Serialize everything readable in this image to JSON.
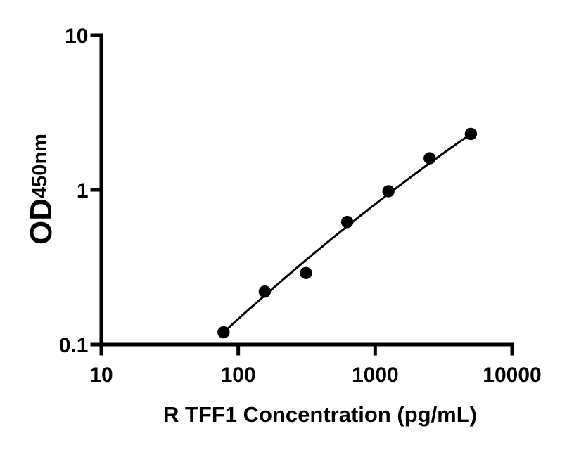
{
  "figure": {
    "background": "#ffffff",
    "xlabel": "R TFF1 Concentration (pg/mL)",
    "ylabel_main": "OD",
    "ylabel_sub": "450nm"
  },
  "chart_data": {
    "type": "scatter",
    "title": "",
    "xlabel": "R TFF1 Concentration (pg/mL)",
    "ylabel": "OD450nm",
    "x_scale": "log",
    "y_scale": "log",
    "xlim": [
      10,
      10000
    ],
    "ylim": [
      0.1,
      10
    ],
    "grid": false,
    "legend_position": "none",
    "axis_color": "#000000",
    "marker_color": "#000000",
    "line_color": "#000000",
    "x_ticks": [
      {
        "value": 10,
        "label": "10"
      },
      {
        "value": 100,
        "label": "100"
      },
      {
        "value": 1000,
        "label": "1000"
      },
      {
        "value": 10000,
        "label": "10000"
      }
    ],
    "y_ticks": [
      {
        "value": 0.1,
        "label": "0.1"
      },
      {
        "value": 1,
        "label": "1"
      },
      {
        "value": 10,
        "label": "10"
      }
    ],
    "points": [
      {
        "x": 78.1,
        "y": 0.12
      },
      {
        "x": 156.3,
        "y": 0.22
      },
      {
        "x": 312.5,
        "y": 0.29
      },
      {
        "x": 625,
        "y": 0.62
      },
      {
        "x": 1250,
        "y": 0.98
      },
      {
        "x": 2500,
        "y": 1.6
      },
      {
        "x": 5000,
        "y": 2.3
      }
    ],
    "fit_curve": {
      "type": "quadratic_loglog",
      "a": -0.2352,
      "b": 0.71,
      "c": -0.0544,
      "x0": 2.7959,
      "domain": [
        78.1,
        5000
      ]
    }
  }
}
